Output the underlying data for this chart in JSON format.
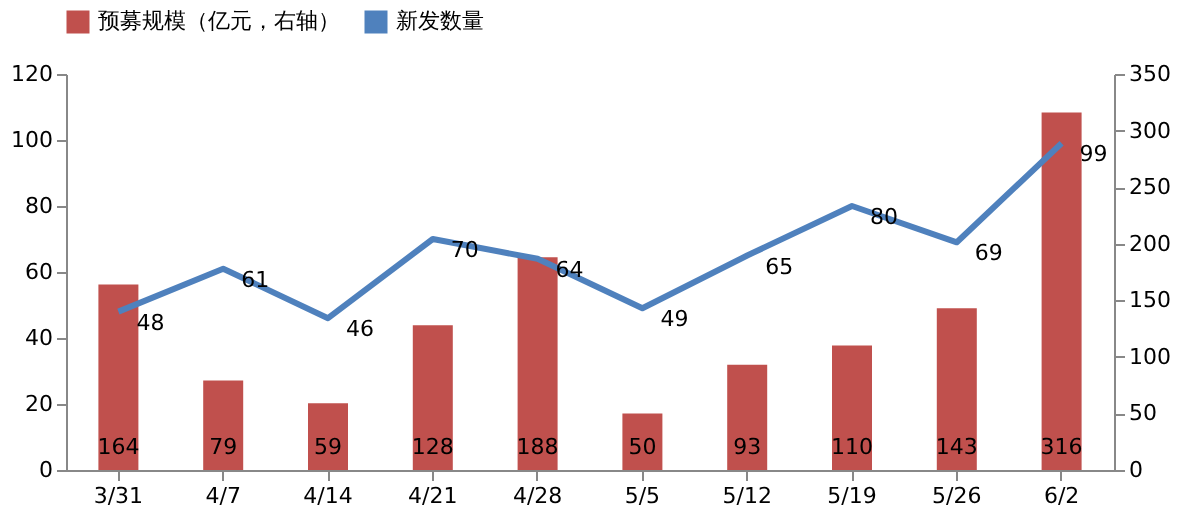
{
  "chart_data": {
    "type": "bar",
    "categories": [
      "3/31",
      "4/7",
      "4/14",
      "4/21",
      "4/28",
      "5/5",
      "5/12",
      "5/19",
      "5/26",
      "6/2"
    ],
    "series": [
      {
        "name": "预募规模（亿元，右轴）",
        "axis": "y2",
        "color": "#c0504d",
        "values": [
          164,
          79,
          59,
          128,
          188,
          50,
          93,
          110,
          143,
          316
        ]
      },
      {
        "name": "新发数量",
        "type": "line",
        "color": "#4f81bd",
        "values": [
          48,
          61,
          46,
          70,
          64,
          49,
          65,
          80,
          69,
          99
        ]
      }
    ],
    "ylim": [
      0,
      120
    ],
    "yticks": [
      0,
      20,
      40,
      60,
      80,
      100,
      120
    ],
    "y2lim": [
      0,
      350
    ],
    "y2ticks": [
      0,
      50,
      100,
      150,
      200,
      250,
      300,
      350
    ],
    "data_labels": true,
    "legend": "top",
    "grid": false,
    "marker": "none",
    "line_style": "solid"
  }
}
